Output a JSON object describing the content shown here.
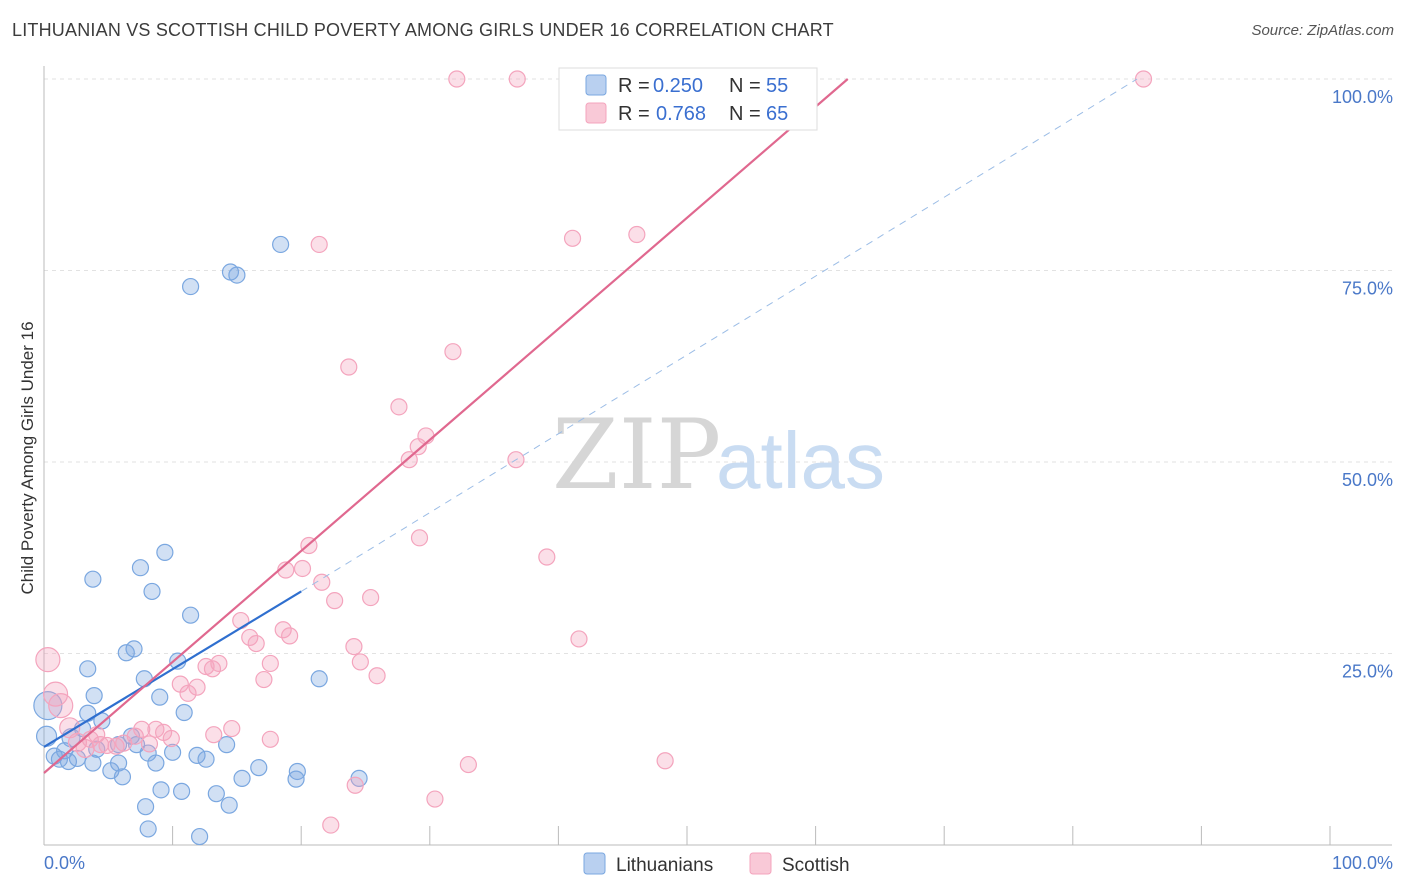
{
  "title": "LITHUANIAN VS SCOTTISH CHILD POVERTY AMONG GIRLS UNDER 16 CORRELATION CHART",
  "source": "Source: ZipAtlas.com",
  "watermark": {
    "zip": "ZIP",
    "atlas": "atlas"
  },
  "chart_data": {
    "type": "scatter",
    "ylabel": "Child Poverty Among Girls Under 16",
    "xlim": [
      0,
      100
    ],
    "ylim": [
      0,
      100
    ],
    "x_ticks": [
      "0.0%",
      "100.0%"
    ],
    "y_ticks": [
      {
        "value": 25,
        "label": "25.0%"
      },
      {
        "value": 50,
        "label": "50.0%"
      },
      {
        "value": 75,
        "label": "75.0%"
      },
      {
        "value": 100,
        "label": "100.0%"
      }
    ],
    "legend": [
      {
        "series": "Lithuanians",
        "r_label": "R =",
        "r_value": "0.250",
        "n_label": "N =",
        "n_value": "55"
      },
      {
        "series": "Scottish",
        "r_label": "R =",
        "r_value": "0.768",
        "n_label": "N =",
        "n_value": "65"
      }
    ],
    "series": [
      {
        "name": "Lithuanians",
        "color": "#7aa7e0",
        "line_color": "#2f6fcf",
        "trend": {
          "x0": 0,
          "y0": 12.8,
          "x1": 20,
          "y1": 33.1,
          "dashed_x1": 85,
          "dashed_y1": 100
        },
        "points": [
          [
            0.3,
            18.2,
            14
          ],
          [
            0.2,
            14.2,
            10
          ],
          [
            0.8,
            11.6,
            8
          ],
          [
            1.2,
            11.2,
            8
          ],
          [
            1.6,
            12.3,
            8
          ],
          [
            1.9,
            10.9,
            8
          ],
          [
            2.1,
            14.0,
            9
          ],
          [
            2.6,
            11.3,
            8
          ],
          [
            3.0,
            15.2,
            8
          ],
          [
            3.4,
            17.2,
            8
          ],
          [
            3.8,
            10.7,
            8
          ],
          [
            4.1,
            12.5,
            8
          ],
          [
            4.5,
            16.2,
            8
          ],
          [
            3.4,
            23.0,
            8
          ],
          [
            3.9,
            19.5,
            8
          ],
          [
            3.8,
            34.7,
            8
          ],
          [
            5.2,
            9.7,
            8
          ],
          [
            5.8,
            10.7,
            8
          ],
          [
            6.4,
            25.1,
            8
          ],
          [
            7.0,
            25.6,
            8
          ],
          [
            5.8,
            13.1,
            8
          ],
          [
            6.8,
            14.2,
            8
          ],
          [
            7.2,
            13.1,
            8
          ],
          [
            7.5,
            36.2,
            8
          ],
          [
            7.8,
            21.7,
            8
          ],
          [
            8.1,
            12.0,
            8
          ],
          [
            8.4,
            33.1,
            8
          ],
          [
            8.7,
            10.7,
            8
          ],
          [
            9.0,
            19.3,
            8
          ],
          [
            9.4,
            38.2,
            8
          ],
          [
            10.0,
            12.1,
            8
          ],
          [
            10.4,
            24.0,
            8
          ],
          [
            10.9,
            17.3,
            8
          ],
          [
            11.4,
            30.0,
            8
          ],
          [
            11.9,
            11.7,
            8
          ],
          [
            7.9,
            5.0,
            8
          ],
          [
            9.1,
            7.2,
            8
          ],
          [
            10.7,
            7.0,
            8
          ],
          [
            8.1,
            2.1,
            8
          ],
          [
            12.1,
            1.1,
            8
          ],
          [
            13.4,
            6.7,
            8
          ],
          [
            14.4,
            5.2,
            8
          ],
          [
            12.6,
            11.2,
            8
          ],
          [
            14.2,
            13.1,
            8
          ],
          [
            15.4,
            8.7,
            8
          ],
          [
            16.7,
            10.1,
            8
          ],
          [
            19.7,
            9.6,
            8
          ],
          [
            19.6,
            8.6,
            8
          ],
          [
            24.5,
            8.7,
            8
          ],
          [
            11.4,
            72.9,
            8
          ],
          [
            14.5,
            74.8,
            8
          ],
          [
            15.0,
            74.4,
            8
          ],
          [
            18.4,
            78.4,
            8
          ],
          [
            21.4,
            21.7,
            8
          ],
          [
            6.1,
            8.9,
            8
          ]
        ]
      },
      {
        "name": "Scottish",
        "color": "#f4a4bd",
        "line_color": "#e0688f",
        "trend": {
          "x0": 0,
          "y0": 9.4,
          "x1": 62.5,
          "y1": 100
        },
        "points": [
          [
            0.3,
            24.2,
            12
          ],
          [
            0.9,
            19.7,
            12
          ],
          [
            1.3,
            18.2,
            12
          ],
          [
            2.0,
            15.3,
            10
          ],
          [
            2.6,
            13.4,
            9
          ],
          [
            3.2,
            12.6,
            9
          ],
          [
            3.6,
            13.8,
            8
          ],
          [
            4.1,
            14.4,
            8
          ],
          [
            4.4,
            13.1,
            8
          ],
          [
            4.9,
            13.0,
            8
          ],
          [
            5.6,
            12.9,
            8
          ],
          [
            6.2,
            13.3,
            8
          ],
          [
            7.1,
            14.2,
            8
          ],
          [
            7.6,
            15.1,
            8
          ],
          [
            8.2,
            13.2,
            8
          ],
          [
            8.7,
            15.1,
            8
          ],
          [
            9.3,
            14.7,
            8
          ],
          [
            9.9,
            13.9,
            8
          ],
          [
            10.6,
            21.0,
            8
          ],
          [
            11.2,
            19.8,
            8
          ],
          [
            11.9,
            20.6,
            8
          ],
          [
            12.6,
            23.3,
            8
          ],
          [
            13.1,
            23.0,
            8
          ],
          [
            13.6,
            23.7,
            8
          ],
          [
            14.6,
            15.2,
            8
          ],
          [
            15.3,
            29.3,
            8
          ],
          [
            16.0,
            27.1,
            8
          ],
          [
            16.5,
            26.3,
            8
          ],
          [
            17.1,
            21.6,
            8
          ],
          [
            17.6,
            23.7,
            8
          ],
          [
            18.6,
            28.1,
            8
          ],
          [
            19.1,
            27.3,
            8
          ],
          [
            20.1,
            36.1,
            8
          ],
          [
            20.6,
            39.1,
            8
          ],
          [
            21.6,
            34.3,
            8
          ],
          [
            22.6,
            31.9,
            8
          ],
          [
            25.4,
            32.3,
            8
          ],
          [
            24.1,
            25.9,
            8
          ],
          [
            24.6,
            23.9,
            8
          ],
          [
            25.9,
            22.1,
            8
          ],
          [
            27.6,
            57.2,
            8
          ],
          [
            28.4,
            50.3,
            8
          ],
          [
            29.1,
            52.0,
            8
          ],
          [
            29.7,
            53.4,
            8
          ],
          [
            29.2,
            40.1,
            8
          ],
          [
            24.2,
            7.8,
            8
          ],
          [
            22.3,
            2.6,
            8
          ],
          [
            30.4,
            6.0,
            8
          ],
          [
            33.0,
            10.5,
            8
          ],
          [
            36.7,
            50.3,
            8
          ],
          [
            39.1,
            37.6,
            8
          ],
          [
            41.6,
            26.9,
            8
          ],
          [
            41.1,
            79.2,
            8
          ],
          [
            46.1,
            79.7,
            8
          ],
          [
            48.3,
            11.0,
            8
          ],
          [
            31.8,
            64.4,
            8
          ],
          [
            21.4,
            78.4,
            8
          ],
          [
            23.7,
            62.4,
            8
          ],
          [
            32.1,
            100,
            8
          ],
          [
            36.8,
            100,
            8
          ],
          [
            46.2,
            100,
            8
          ],
          [
            85.5,
            100,
            8
          ],
          [
            18.8,
            35.9,
            8
          ],
          [
            17.6,
            13.8,
            8
          ],
          [
            13.2,
            14.4,
            8
          ]
        ]
      }
    ]
  }
}
